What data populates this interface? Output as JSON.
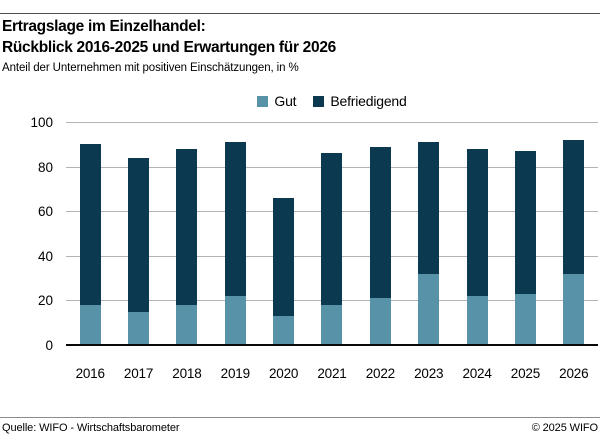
{
  "header": {
    "title_line1": "Ertragslage im Einzelhandel:",
    "title_line2": "Rückblick 2016-2025 und Erwartungen für 2026",
    "subtitle": "Anteil der Unternehmen mit positiven Einschätzungen, in %"
  },
  "chart_data": {
    "type": "bar",
    "stacked": true,
    "title": "Ertragslage im Einzelhandel: Rückblick 2016-2025 und Erwartungen für 2026",
    "ylabel": "Anteil der Unternehmen mit positiven Einschätzungen, in %",
    "categories": [
      "2016",
      "2017",
      "2018",
      "2019",
      "2020",
      "2021",
      "2022",
      "2023",
      "2024",
      "2025",
      "2026"
    ],
    "series": [
      {
        "name": "Gut",
        "color": "#5792A9",
        "values": [
          18,
          15,
          18,
          22,
          13,
          18,
          21,
          32,
          22,
          23,
          32
        ]
      },
      {
        "name": "Befriedigend",
        "color": "#0B3A50",
        "values": [
          72,
          69,
          70,
          69,
          53,
          68,
          68,
          59,
          66,
          64,
          60
        ]
      }
    ],
    "totals": [
      90,
      84,
      88,
      91,
      66,
      86,
      89,
      91,
      88,
      87,
      92
    ],
    "ylim": [
      0,
      100
    ],
    "yticks": [
      0,
      20,
      40,
      60,
      80,
      100
    ],
    "grid": true,
    "legend_position": "top-center",
    "gridline_color": "#b3b3b3",
    "axis_color": "#0a0a0a"
  },
  "footer": {
    "source": "Quelle: WIFO - Wirtschaftsbarometer",
    "copyright": "© 2025 WIFO"
  }
}
